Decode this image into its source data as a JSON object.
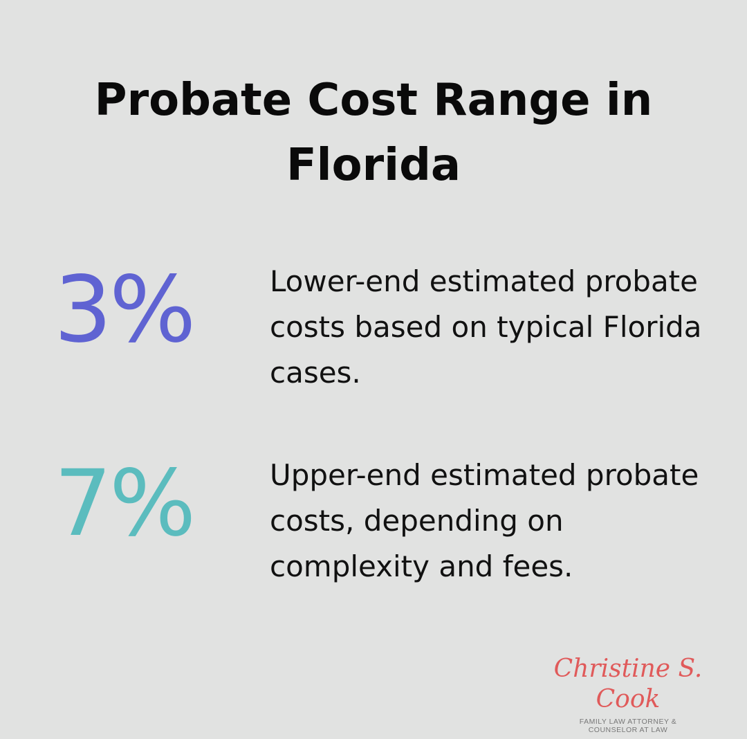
{
  "title": "Probate Cost Range in Florida",
  "stats": [
    {
      "value": "3%",
      "color": "#5f63d2",
      "description": "Lower-end estimated probate costs based on typical Florida cases."
    },
    {
      "value": "7%",
      "color": "#5bbcbe",
      "description": "Upper-end estimated probate costs, depending on complexity and fees."
    }
  ],
  "logo": {
    "name": "Christine S. Cook",
    "line1": "FAMILY LAW ATTORNEY &",
    "line2": "COUNSELOR AT LAW",
    "color": "#e05a5a"
  }
}
